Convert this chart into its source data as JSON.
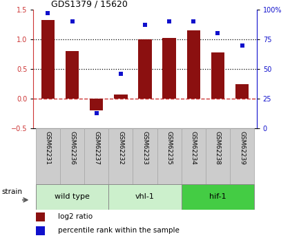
{
  "title": "GDS1379 / 15620",
  "samples": [
    "GSM62231",
    "GSM62236",
    "GSM62237",
    "GSM62232",
    "GSM62233",
    "GSM62235",
    "GSM62234",
    "GSM62238",
    "GSM62239"
  ],
  "log2_ratio": [
    1.32,
    0.8,
    -0.2,
    0.07,
    1.0,
    1.02,
    1.15,
    0.78,
    0.24
  ],
  "percentile_rank": [
    97,
    90,
    13,
    46,
    87,
    90,
    90,
    80,
    70
  ],
  "groups": [
    {
      "label": "wild type",
      "start": 0,
      "end": 3,
      "color": "#cceecc"
    },
    {
      "label": "vhl-1",
      "start": 3,
      "end": 6,
      "color": "#ccf0cc"
    },
    {
      "label": "hif-1",
      "start": 6,
      "end": 9,
      "color": "#44cc44"
    }
  ],
  "bar_color": "#8B1010",
  "dot_color": "#1010CC",
  "ylim_left": [
    -0.5,
    1.5
  ],
  "ylim_right": [
    0,
    100
  ],
  "yticks_left": [
    -0.5,
    0.0,
    0.5,
    1.0,
    1.5
  ],
  "yticks_right": [
    0,
    25,
    50,
    75,
    100
  ],
  "hline_dotted": [
    0.5,
    1.0
  ],
  "hline_zero_color": "#CC3333",
  "axis_left_color": "#CC3333",
  "axis_right_color": "#1010CC",
  "label_box_color": "#cccccc",
  "label_box_edge": "#aaaaaa",
  "background_color": "#ffffff",
  "strain_label": "strain",
  "legend_log2": "log2 ratio",
  "legend_pct": "percentile rank within the sample",
  "fig_width": 4.2,
  "fig_height": 3.45,
  "dpi": 100
}
